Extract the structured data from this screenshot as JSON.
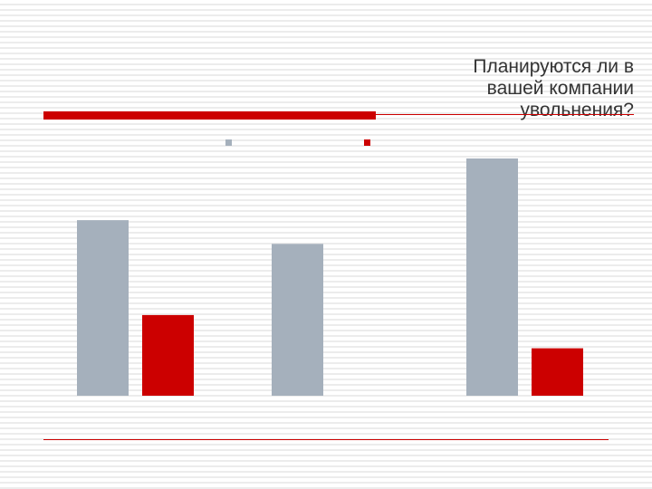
{
  "slide": {
    "title": "Планируются ли в\nвашей компании\nувольнения?"
  },
  "chart_data": {
    "type": "bar",
    "categories": [
      "",
      "",
      ""
    ],
    "series": [
      {
        "values": [
          37,
          32,
          50
        ],
        "color": "#a5b0bc"
      },
      {
        "values": [
          17,
          0,
          10
        ],
        "color": "#cc0000"
      }
    ],
    "grid": false,
    "legend": "top"
  }
}
